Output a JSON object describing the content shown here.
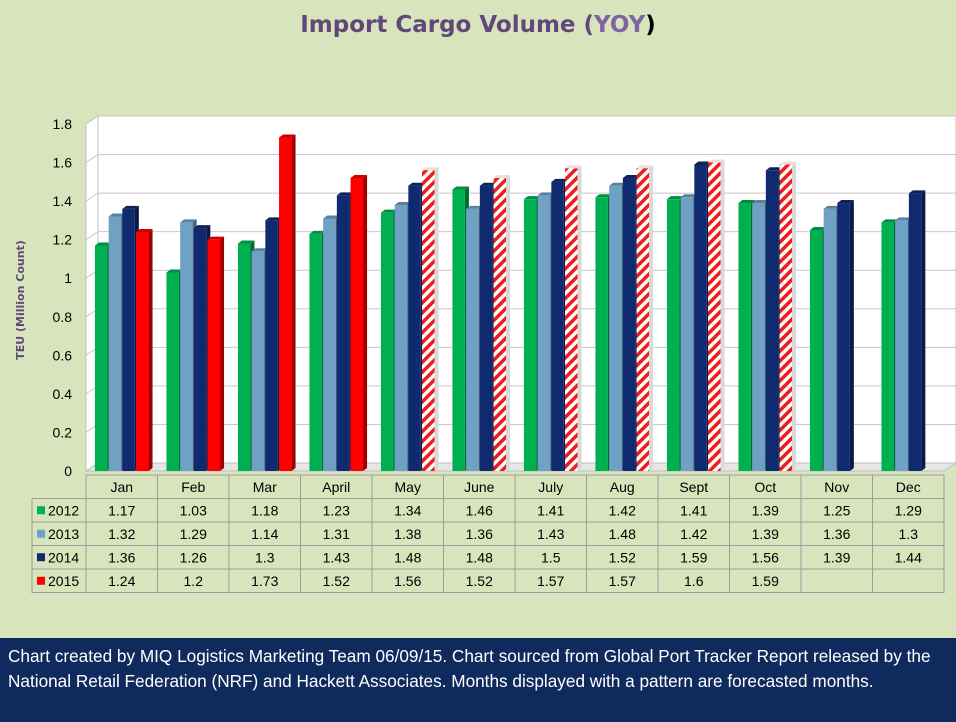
{
  "chart_data": {
    "type": "bar",
    "title": "Import Cargo Volume (YOY)",
    "ylabel": "TEU (Million Count)",
    "xlabel": "",
    "ylim": [
      0,
      1.8
    ],
    "yticks": [
      "0",
      "0.2",
      "0.4",
      "0.6",
      "0.8",
      "1",
      "1.2",
      "1.4",
      "1.6",
      "1.8"
    ],
    "grid": true,
    "legend": "data-table-left",
    "categories": [
      "Jan",
      "Feb",
      "Mar",
      "April",
      "May",
      "June",
      "July",
      "Aug",
      "Sept",
      "Oct",
      "Nov",
      "Dec"
    ],
    "forecast_from_index": 4,
    "series": [
      {
        "name": "2012",
        "color": "#00b050",
        "values": [
          1.17,
          1.03,
          1.18,
          1.23,
          1.34,
          1.46,
          1.41,
          1.42,
          1.41,
          1.39,
          1.25,
          1.29
        ],
        "labels": [
          "1.17",
          "1.03",
          "1.18",
          "1.23",
          "1.34",
          "1.46",
          "1.41",
          "1.42",
          "1.41",
          "1.39",
          "1.25",
          "1.29"
        ]
      },
      {
        "name": "2013",
        "color": "#6fa1c4",
        "values": [
          1.32,
          1.29,
          1.14,
          1.31,
          1.38,
          1.36,
          1.43,
          1.48,
          1.42,
          1.39,
          1.36,
          1.3
        ],
        "labels": [
          "1.32",
          "1.29",
          "1.14",
          "1.31",
          "1.38",
          "1.36",
          "1.43",
          "1.48",
          "1.42",
          "1.39",
          "1.36",
          "1.3"
        ]
      },
      {
        "name": "2014",
        "color": "#0f2a6e",
        "values": [
          1.36,
          1.26,
          1.3,
          1.43,
          1.48,
          1.48,
          1.5,
          1.52,
          1.59,
          1.56,
          1.39,
          1.44
        ],
        "labels": [
          "1.36",
          "1.26",
          "1.3",
          "1.43",
          "1.48",
          "1.48",
          "1.5",
          "1.52",
          "1.59",
          "1.56",
          "1.39",
          "1.44"
        ]
      },
      {
        "name": "2015",
        "color": "#ff0000",
        "values": [
          1.24,
          1.2,
          1.73,
          1.52,
          1.56,
          1.52,
          1.57,
          1.57,
          1.6,
          1.59,
          null,
          null
        ],
        "labels": [
          "1.24",
          "1.2",
          "1.73",
          "1.52",
          "1.56",
          "1.52",
          "1.57",
          "1.57",
          "1.6",
          "1.59",
          "",
          ""
        ]
      }
    ]
  },
  "title_parts": {
    "open": "Import Cargo Volume (",
    "mid": "YOY",
    "close": ")"
  },
  "footer_text": "Chart created by MIQ Logistics Marketing Team 06/09/15. Chart sourced from Global Port Tracker Report released by the National Retail Federation (NRF) and Hackett Associates. Months displayed with a pattern are forecasted months."
}
